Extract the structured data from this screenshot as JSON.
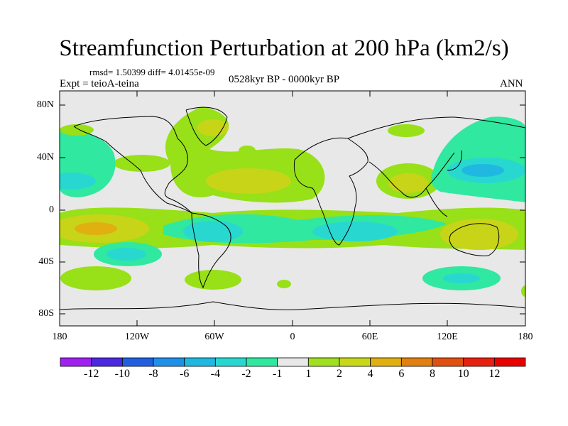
{
  "title": "Streamfunction Perturbation at 200 hPa (km2/s)",
  "stats_line": "rmsd= 1.50399 diff= 4.01455e-09",
  "experiment": "Expt = teioA-teina",
  "period": "0528kyr BP - 0000kyr BP",
  "season": "ANN",
  "map": {
    "y_ticks": [
      "80N",
      "40N",
      "0",
      "40S",
      "80S"
    ],
    "x_ticks": [
      "180",
      "120W",
      "60W",
      "0",
      "60E",
      "120E",
      "180"
    ]
  },
  "colorbar": {
    "labels": [
      "-12",
      "-10",
      "-8",
      "-6",
      "-4",
      "-2",
      "-1",
      "1",
      "2",
      "4",
      "6",
      "8",
      "10",
      "12"
    ],
    "colors": [
      "#a020f0",
      "#4b28e0",
      "#2060e0",
      "#1e90e8",
      "#20b8e0",
      "#28d8d0",
      "#30e8a0",
      "#e8e8e8",
      "#a0e020",
      "#c8d818",
      "#e0b010",
      "#e08010",
      "#e05010",
      "#e82010",
      "#e80000"
    ]
  },
  "colors": {
    "background": "#e8e8e8",
    "green": "#98e018",
    "yellow": "#c8d418",
    "orange": "#e0b010",
    "teal": "#30e8a0",
    "cyan": "#28d8d0",
    "blue": "#20b8e0"
  }
}
